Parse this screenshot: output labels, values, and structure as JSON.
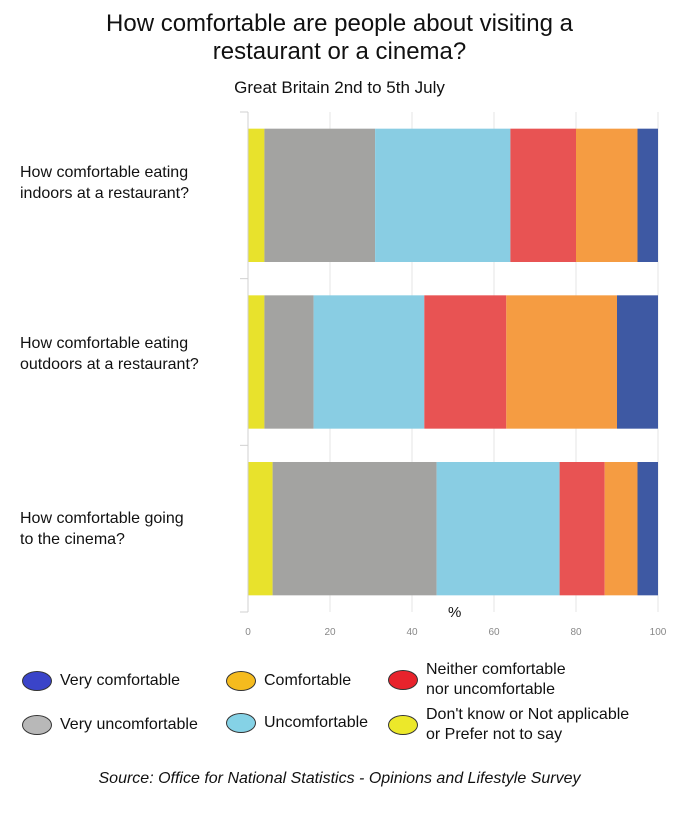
{
  "chart_data": {
    "type": "bar",
    "orientation": "horizontal",
    "stacked": true,
    "title": "How comfortable are people about visiting a restaurant or a cinema?",
    "subtitle": "Great Britain 2nd to 5th July",
    "xlabel": "%",
    "ylabel": "",
    "xlim": [
      0,
      100
    ],
    "x_ticks": [
      "0",
      "20",
      "40",
      "60",
      "80",
      "100"
    ],
    "grid": true,
    "legend_position": "bottom",
    "categories": [
      "How comfortable eating indoors at a restaurant?",
      "How comfortable eating outdoors at a restaurant?",
      "How comfortable going to the cinema?"
    ],
    "series": [
      {
        "name": "Don't know or Not applicable or Prefer not to say",
        "color": "#e8e22c",
        "values": [
          4,
          4,
          6
        ]
      },
      {
        "name": "Very uncomfortable",
        "color": "#a3a3a1",
        "values": [
          27,
          12,
          40
        ]
      },
      {
        "name": "Uncomfortable",
        "color": "#89cde3",
        "values": [
          33,
          27,
          30
        ]
      },
      {
        "name": "Neither comfortable nor uncomfortable",
        "color": "#e85353",
        "values": [
          16,
          20,
          11
        ]
      },
      {
        "name": "Comfortable",
        "color": "#f59c42",
        "values": [
          15,
          27,
          8
        ]
      },
      {
        "name": "Very comfortable",
        "color": "#3e59a3",
        "values": [
          5,
          10,
          5
        ]
      }
    ]
  },
  "title_lines": [
    "How comfortable are people about visiting a",
    "restaurant or a cinema?"
  ],
  "category_lines": [
    [
      "How comfortable eating",
      "indoors at a restaurant?"
    ],
    [
      "How comfortable eating",
      "outdoors at a restaurant?"
    ],
    [
      "How comfortable going",
      "to the cinema?"
    ]
  ],
  "legend": [
    {
      "label_lines": [
        "Very comfortable"
      ],
      "color": "#3a44c9"
    },
    {
      "label_lines": [
        "Comfortable"
      ],
      "color": "#f5bb1e"
    },
    {
      "label_lines": [
        "Neither comfortable",
        "nor uncomfortable"
      ],
      "color": "#e8232c"
    },
    {
      "label_lines": [
        "Very uncomfortable"
      ],
      "color": "#b8b8b8"
    },
    {
      "label_lines": [
        "Uncomfortable"
      ],
      "color": "#85d2e6"
    },
    {
      "label_lines": [
        "Don't know or Not applicable",
        "or Prefer not to say"
      ],
      "color": "#ece82a"
    }
  ],
  "source": "Source: Office for National Statistics - Opinions and Lifestyle Survey"
}
